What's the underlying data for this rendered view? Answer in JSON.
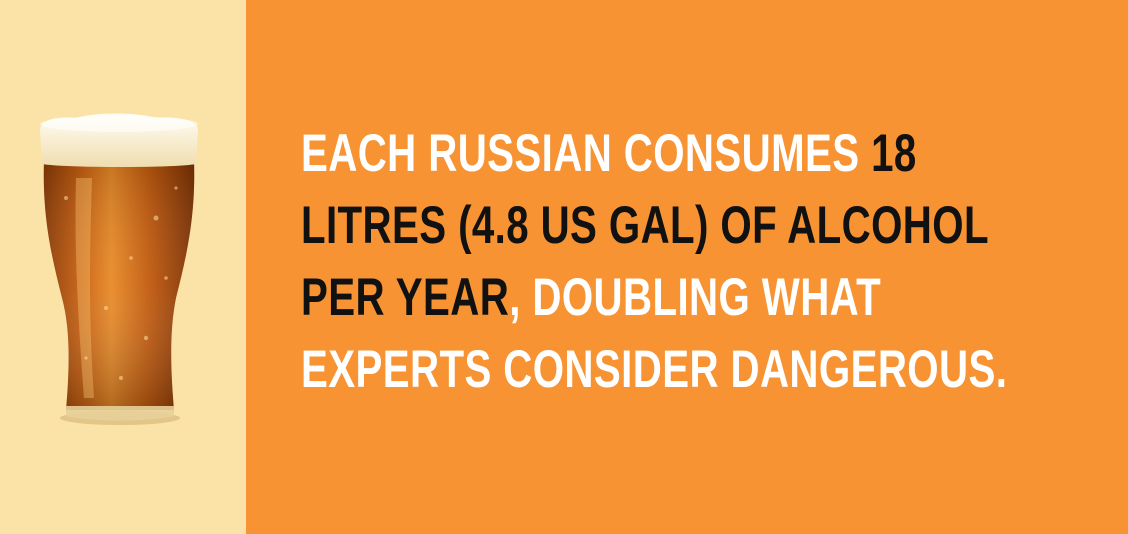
{
  "background": {
    "left_color": "#fbe3a8",
    "right_color": "#f79332"
  },
  "image": {
    "subject": "beer-glass-icon"
  },
  "fact": {
    "line1_a": "EACH RUSSIAN CONSUMES",
    "line1_b": " 18",
    "line2": "LITRES (4.8 US GAL) OF ALCOHOL",
    "line3_a": "PER YEAR",
    "line3_b": ", DOUBLING WHAT",
    "line4": "EXPERTS CONSIDER DANGEROUS.",
    "highlight_color": "#ffffff",
    "emphasis_color": "#111111"
  }
}
